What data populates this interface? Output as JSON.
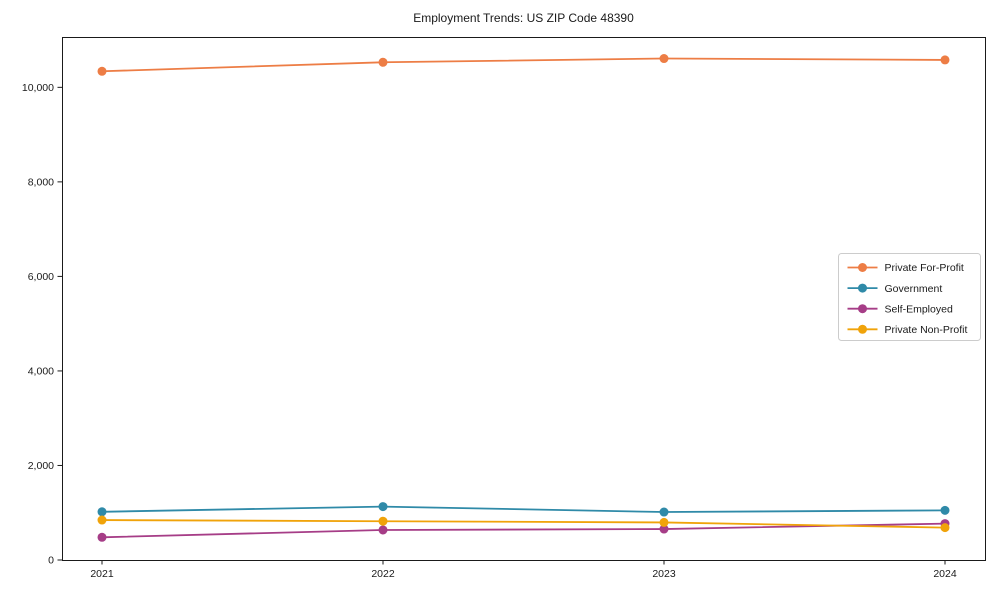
{
  "chart_data": {
    "type": "line",
    "title": "Employment Trends: US ZIP Code 48390",
    "xlabel": "",
    "ylabel": "",
    "x": [
      "2021",
      "2022",
      "2023",
      "2024"
    ],
    "ylim": [
      0,
      11065
    ],
    "yticks": {
      "values": [
        0,
        2000,
        4000,
        6000,
        8000,
        10000
      ],
      "labels": [
        "0",
        "2,000",
        "4,000",
        "6,000",
        "8,000",
        "10,000"
      ]
    },
    "grid": false,
    "legend_position": "center-right",
    "marker": "circle",
    "series": [
      {
        "name": "Private For-Profit",
        "color": "#ed7d45",
        "values": [
          10340,
          10530,
          10610,
          10580
        ]
      },
      {
        "name": "Government",
        "color": "#2f8aa8",
        "values": [
          1020,
          1130,
          1015,
          1050
        ]
      },
      {
        "name": "Self-Employed",
        "color": "#a63d87",
        "values": [
          480,
          635,
          655,
          770
        ]
      },
      {
        "name": "Private Non-Profit",
        "color": "#f0a30a",
        "values": [
          845,
          820,
          795,
          685
        ]
      }
    ],
    "colors": {
      "spine": "#1a1a1a",
      "legend_border": "#cccccc",
      "background": "#ffffff"
    }
  }
}
